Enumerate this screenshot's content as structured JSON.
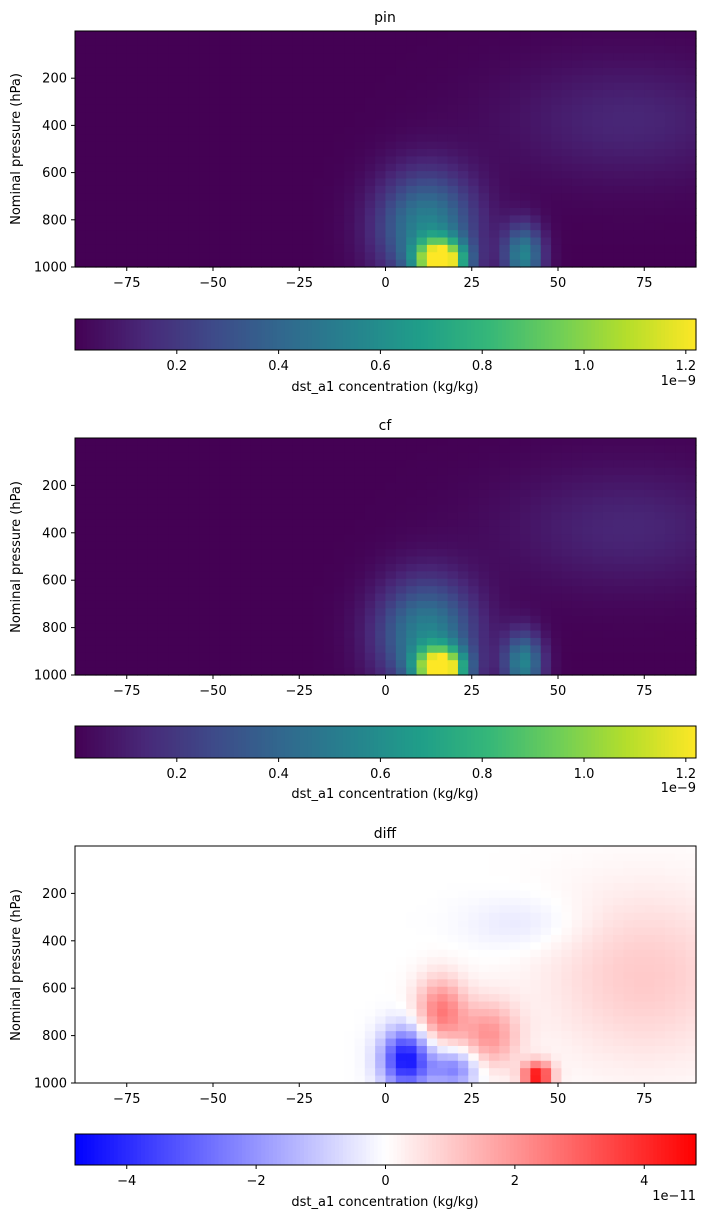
{
  "chart_data": [
    {
      "type": "heatmap",
      "title": "pin",
      "xlabel": "",
      "ylabel": "Nominal pressure (hPa)",
      "xlim": [
        -90,
        90
      ],
      "ylim": [
        1000,
        0
      ],
      "x_ticks": [
        -75,
        -50,
        -25,
        0,
        25,
        50,
        75
      ],
      "y_ticks": [
        200,
        400,
        600,
        800,
        1000
      ],
      "colormap": "viridis",
      "colorbar": {
        "label": "dst_a1 concentration (kg/kg)",
        "min": 0,
        "max": 1.22,
        "ticks": [
          "0.2",
          "0.4",
          "0.6",
          "0.8",
          "1.0",
          "1.2"
        ],
        "tick_values": [
          0.2,
          0.4,
          0.6,
          0.8,
          1.0,
          1.2
        ],
        "offset": "1e−9"
      },
      "features": [
        {
          "lat": 16,
          "pressure": 975,
          "value": 1.2,
          "lat_width": 5,
          "p_width": 60
        },
        {
          "lat": 12,
          "pressure": 830,
          "value": 0.55,
          "lat_width": 10,
          "p_width": 160
        },
        {
          "lat": 40,
          "pressure": 950,
          "value": 0.55,
          "lat_width": 4,
          "p_width": 90
        },
        {
          "lat": 70,
          "pressure": 380,
          "value": 0.13,
          "lat_width": 25,
          "p_width": 180
        }
      ]
    },
    {
      "type": "heatmap",
      "title": "cf",
      "xlabel": "",
      "ylabel": "Nominal pressure (hPa)",
      "xlim": [
        -90,
        90
      ],
      "ylim": [
        1000,
        0
      ],
      "x_ticks": [
        -75,
        -50,
        -25,
        0,
        25,
        50,
        75
      ],
      "y_ticks": [
        200,
        400,
        600,
        800,
        1000
      ],
      "colormap": "viridis",
      "colorbar": {
        "label": "dst_a1 concentration (kg/kg)",
        "min": 0,
        "max": 1.22,
        "ticks": [
          "0.2",
          "0.4",
          "0.6",
          "0.8",
          "1.0",
          "1.2"
        ],
        "tick_values": [
          0.2,
          0.4,
          0.6,
          0.8,
          1.0,
          1.2
        ],
        "offset": "1e−9"
      },
      "features": [
        {
          "lat": 16,
          "pressure": 975,
          "value": 1.2,
          "lat_width": 5,
          "p_width": 60
        },
        {
          "lat": 12,
          "pressure": 830,
          "value": 0.55,
          "lat_width": 10,
          "p_width": 160
        },
        {
          "lat": 40,
          "pressure": 950,
          "value": 0.55,
          "lat_width": 4,
          "p_width": 90
        },
        {
          "lat": 70,
          "pressure": 380,
          "value": 0.13,
          "lat_width": 25,
          "p_width": 180
        }
      ]
    },
    {
      "type": "heatmap",
      "title": "diff",
      "xlabel": "",
      "ylabel": "Nominal pressure (hPa)",
      "xlim": [
        -90,
        90
      ],
      "ylim": [
        1000,
        0
      ],
      "x_ticks": [
        -75,
        -50,
        -25,
        0,
        25,
        50,
        75
      ],
      "y_ticks": [
        200,
        400,
        600,
        800,
        1000
      ],
      "colormap": "bwr",
      "colorbar": {
        "label": "dst_a1 concentration (kg/kg)",
        "min": -4.8,
        "max": 4.8,
        "ticks": [
          "−4",
          "−2",
          "0",
          "2",
          "4"
        ],
        "tick_values": [
          -4,
          -2,
          0,
          2,
          4
        ],
        "offset": "1e−11"
      },
      "features": [
        {
          "lat": 6,
          "pressure": 900,
          "value": -4.5,
          "lat_width": 5,
          "p_width": 90
        },
        {
          "lat": 20,
          "pressure": 940,
          "value": -2.5,
          "lat_width": 5,
          "p_width": 60
        },
        {
          "lat": 16,
          "pressure": 700,
          "value": 2.5,
          "lat_width": 5,
          "p_width": 100
        },
        {
          "lat": 30,
          "pressure": 800,
          "value": 2.0,
          "lat_width": 6,
          "p_width": 100
        },
        {
          "lat": 44,
          "pressure": 970,
          "value": 4.5,
          "lat_width": 3,
          "p_width": 40
        },
        {
          "lat": 75,
          "pressure": 550,
          "value": 1.0,
          "lat_width": 20,
          "p_width": 250
        },
        {
          "lat": 40,
          "pressure": 330,
          "value": -0.5,
          "lat_width": 12,
          "p_width": 80
        }
      ]
    }
  ]
}
